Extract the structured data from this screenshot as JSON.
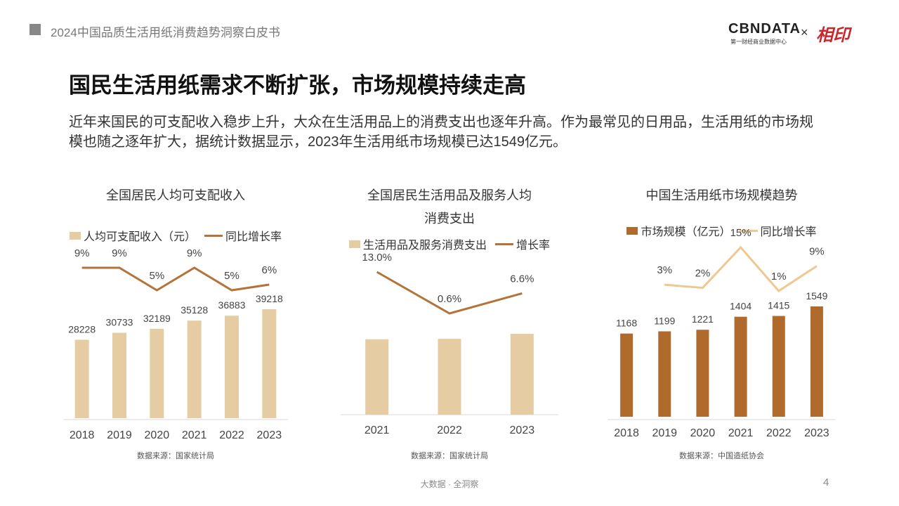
{
  "header": {
    "report_title": "2024中国品质生活用纸消费趋势洞察白皮书",
    "logo": {
      "brand": "CBNDATA",
      "brand_sub": "第一财经商业数据中心",
      "times": "×",
      "partner": "相印"
    }
  },
  "heading": "国民生活用纸需求不断扩张，市场规模持续走高",
  "intro": "近年来国民的可支配收入稳步上升，大众在生活用品上的消费支出也逐年升高。作为最常见的日用品，生活用纸的市场规模也随之逐年扩大，据统计数据显示，2023年生活用纸市场规模已达1549亿元。",
  "chart_data": [
    {
      "type": "combo",
      "title": "全国居民人均可支配收入",
      "categories": [
        2018,
        2019,
        2020,
        2021,
        2022,
        2023
      ],
      "series": [
        {
          "name": "人均可支配收入（元）",
          "type": "bar",
          "color": "#e6cca2",
          "values": [
            28228,
            30733,
            32189,
            35128,
            36883,
            39218
          ]
        },
        {
          "name": "同比增长率",
          "type": "line",
          "axis": "y2",
          "color": "#b5733a",
          "values": [
            9,
            9,
            5,
            9,
            5,
            6
          ],
          "value_labels": [
            "9%",
            "9%",
            "5%",
            "9%",
            "5%",
            "6%"
          ]
        }
      ],
      "source": "数据来源：国家统计局"
    },
    {
      "type": "combo",
      "title": "全国居民生活用品及服务人均消费支出",
      "categories": [
        2021,
        2022,
        2023
      ],
      "series": [
        {
          "name": "生活用品及服务消费支出",
          "type": "bar",
          "color": "#e6cca2",
          "values": [
            1423,
            1432,
            1526
          ]
        },
        {
          "name": "增长率",
          "type": "line",
          "axis": "y2",
          "color": "#b5733a",
          "values": [
            13.0,
            0.6,
            6.6
          ],
          "value_labels": [
            "13.0%",
            "0.6%",
            "6.6%"
          ]
        }
      ],
      "source": "数据来源：国家统计局"
    },
    {
      "type": "combo",
      "title": "中国生活用纸市场规模趋势",
      "categories": [
        2018,
        2019,
        2020,
        2021,
        2022,
        2023
      ],
      "series": [
        {
          "name": "市场规模（亿元）",
          "type": "bar",
          "color": "#b06a2c",
          "values": [
            1168,
            1199,
            1221,
            1404,
            1415,
            1549
          ]
        },
        {
          "name": "同比增长率",
          "type": "line",
          "axis": "y2",
          "color": "#f0c78f",
          "values": [
            null,
            3,
            2,
            15,
            1,
            9
          ],
          "value_labels": [
            null,
            "3%",
            "2%",
            "15%",
            "1%",
            "9%"
          ]
        }
      ],
      "source": "数据来源：中国造纸协会"
    }
  ],
  "footer": {
    "slogan": "大数据 · 全洞察",
    "page": 4
  }
}
